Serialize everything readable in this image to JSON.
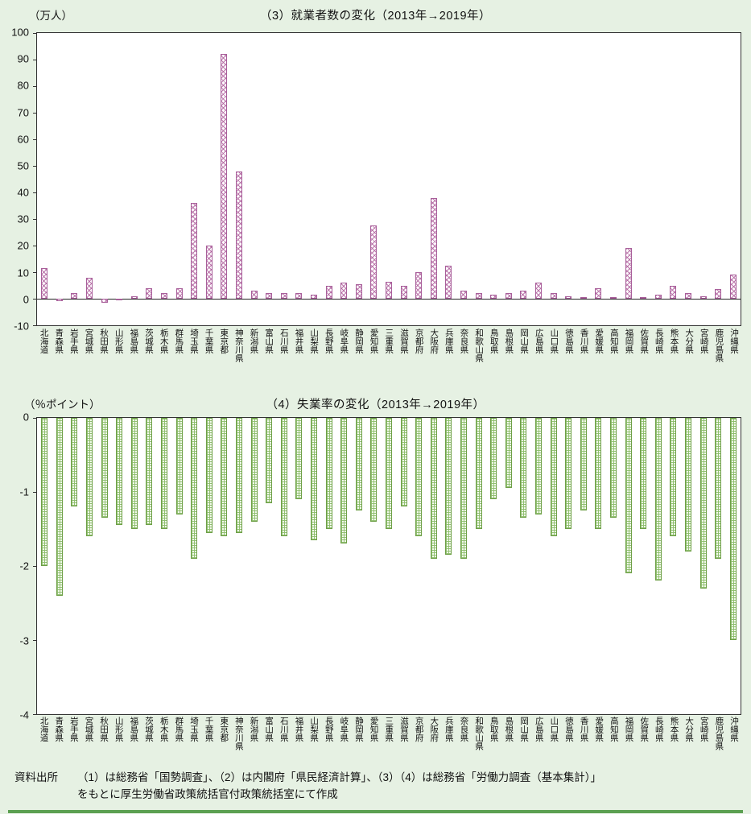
{
  "page": {
    "background_color": "#e6f1e3",
    "bottom_strip_color": "#5ca052",
    "accent_pink": "#b266a0",
    "accent_green": "#8abc68"
  },
  "chart_data": [
    {
      "type": "bar",
      "title": "（3）就業者数の変化（2013年→2019年）",
      "unit_label": "（万人）",
      "xlabel": "",
      "ylabel": "万人",
      "ylim": [
        -10,
        100
      ],
      "yticks": [
        100,
        90,
        80,
        70,
        60,
        50,
        40,
        30,
        20,
        10,
        0,
        -10
      ],
      "grid": false,
      "legend": "none",
      "bar_color": "#b266a0",
      "bar_pattern": "crosshatch",
      "categories": [
        "北海道",
        "青森県",
        "岩手県",
        "宮城県",
        "秋田県",
        "山形県",
        "福島県",
        "茨城県",
        "栃木県",
        "群馬県",
        "埼玉県",
        "千葉県",
        "東京都",
        "神奈川県",
        "新潟県",
        "富山県",
        "石川県",
        "福井県",
        "山梨県",
        "長野県",
        "岐阜県",
        "静岡県",
        "愛知県",
        "三重県",
        "滋賀県",
        "京都府",
        "大阪府",
        "兵庫県",
        "奈良県",
        "和歌山県",
        "鳥取県",
        "島根県",
        "岡山県",
        "広島県",
        "山口県",
        "徳島県",
        "香川県",
        "愛媛県",
        "高知県",
        "福岡県",
        "佐賀県",
        "長崎県",
        "熊本県",
        "大分県",
        "宮崎県",
        "鹿児島県",
        "沖縄県"
      ],
      "values": [
        11.5,
        -1,
        2,
        8,
        -1.5,
        -0.5,
        1,
        4,
        2,
        4,
        36,
        20,
        92,
        48,
        3,
        2,
        2,
        2,
        1.5,
        5,
        6,
        5.5,
        27.5,
        6.5,
        5,
        10,
        38,
        12.5,
        3,
        2,
        1.5,
        2,
        3,
        6,
        2,
        1,
        0.5,
        4,
        0.5,
        19,
        0.5,
        1.5,
        5,
        2,
        1,
        3.5,
        9
      ]
    },
    {
      "type": "bar",
      "title": "（4）失業率の変化（2013年→2019年）",
      "unit_label": "（％ポイント）",
      "xlabel": "",
      "ylabel": "％ポイント",
      "ylim": [
        -4,
        0
      ],
      "yticks": [
        0,
        -1,
        -2,
        -3,
        -4
      ],
      "grid": false,
      "legend": "none",
      "bar_color": "#8abc68",
      "bar_pattern": "lattice",
      "categories": [
        "北海道",
        "青森県",
        "岩手県",
        "宮城県",
        "秋田県",
        "山形県",
        "福島県",
        "茨城県",
        "栃木県",
        "群馬県",
        "埼玉県",
        "千葉県",
        "東京都",
        "神奈川県",
        "新潟県",
        "富山県",
        "石川県",
        "福井県",
        "山梨県",
        "長野県",
        "岐阜県",
        "静岡県",
        "愛知県",
        "三重県",
        "滋賀県",
        "京都府",
        "大阪府",
        "兵庫県",
        "奈良県",
        "和歌山県",
        "鳥取県",
        "島根県",
        "岡山県",
        "広島県",
        "山口県",
        "徳島県",
        "香川県",
        "愛媛県",
        "高知県",
        "福岡県",
        "佐賀県",
        "長崎県",
        "熊本県",
        "大分県",
        "宮崎県",
        "鹿児島県",
        "沖縄県"
      ],
      "values": [
        -2.0,
        -2.4,
        -1.2,
        -1.6,
        -1.35,
        -1.45,
        -1.5,
        -1.45,
        -1.5,
        -1.3,
        -1.9,
        -1.55,
        -1.6,
        -1.55,
        -1.4,
        -1.15,
        -1.6,
        -1.1,
        -1.65,
        -1.5,
        -1.7,
        -1.25,
        -1.4,
        -1.5,
        -1.2,
        -1.6,
        -1.9,
        -1.85,
        -1.9,
        -1.5,
        -1.1,
        -0.95,
        -1.35,
        -1.3,
        -1.6,
        -1.5,
        -1.25,
        -1.5,
        -1.35,
        -2.1,
        -1.5,
        -2.2,
        -1.6,
        -1.8,
        -2.3,
        -1.9,
        -3.0
      ]
    }
  ],
  "source": {
    "label": "資料出所",
    "line1": "（1）は総務省「国勢調査」、（2）は内閣府「県民経済計算」、（3）（4）は総務省「労働力調査（基本集計）」",
    "line2": "をもとに厚生労働省政策統括官付政策統括室にて作成"
  }
}
